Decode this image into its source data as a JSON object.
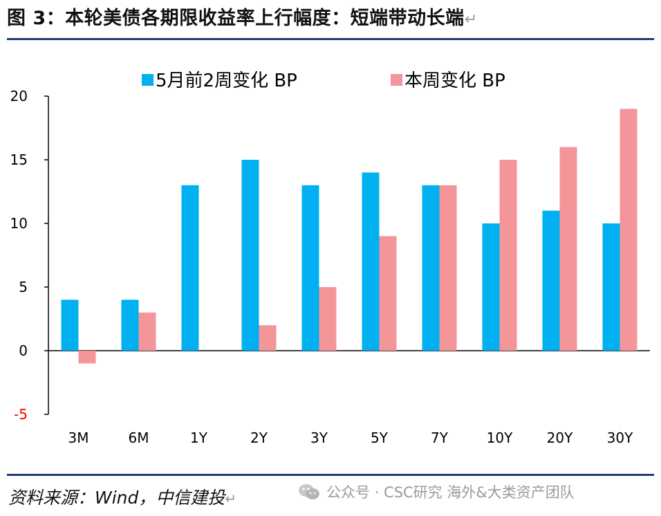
{
  "figure": {
    "title": "图 3：本轮美债各期限收益率上行幅度：短端带动长端",
    "return_mark": "↵",
    "source": "资料来源：Wind，中信建投",
    "watermark": "公众号 · CSC研究 海外&大类资产团队",
    "watermark_icon": "wechat-icon"
  },
  "chart_data": {
    "type": "bar",
    "categories": [
      "3M",
      "6M",
      "1Y",
      "2Y",
      "3Y",
      "5Y",
      "7Y",
      "10Y",
      "20Y",
      "30Y"
    ],
    "series": [
      {
        "name": "5月前2周变化 BP",
        "color": "#00b0f0",
        "values": [
          4,
          4,
          13,
          15,
          13,
          14,
          13,
          10,
          11,
          10
        ]
      },
      {
        "name": "本周变化 BP",
        "color": "#f4959a",
        "values": [
          -1,
          3,
          0,
          2,
          5,
          9,
          13,
          15,
          16,
          19
        ]
      }
    ],
    "ylim": [
      -5,
      20
    ],
    "yticks": [
      -5,
      0,
      5,
      10,
      15,
      20
    ],
    "negative_tick_color": "#ff0000",
    "xlabel": "",
    "ylabel": "",
    "grid": false,
    "legend": "top"
  }
}
